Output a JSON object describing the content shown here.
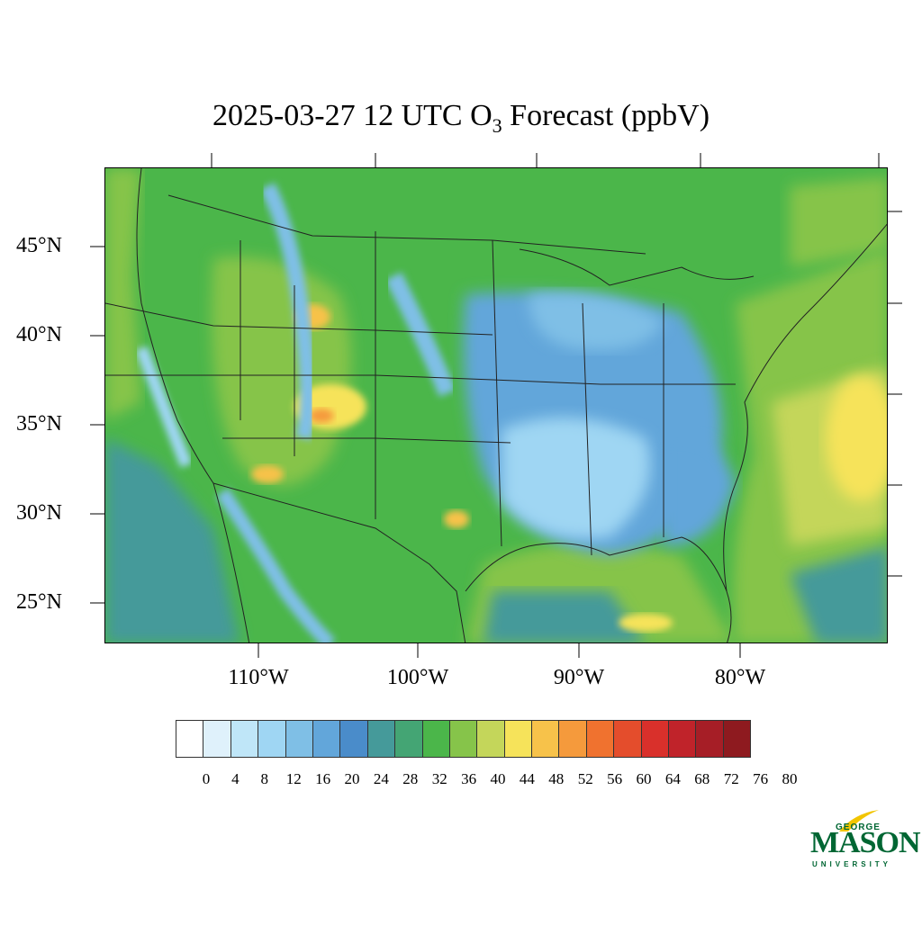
{
  "title": {
    "prefix": "2025-03-27 12 UTC O",
    "subscript": "3",
    "suffix": " Forecast (ppbV)"
  },
  "lat_labels": [
    "45°N",
    "40°N",
    "35°N",
    "30°N",
    "25°N"
  ],
  "lon_labels": [
    "110°W",
    "100°W",
    "90°W",
    "80°W"
  ],
  "colorbar": {
    "labels": [
      "0",
      "4",
      "8",
      "12",
      "16",
      "20",
      "24",
      "28",
      "32",
      "36",
      "40",
      "44",
      "48",
      "52",
      "56",
      "60",
      "64",
      "68",
      "72",
      "76",
      "80"
    ],
    "colors": [
      "#ffffff",
      "#dff1fb",
      "#bfe6f8",
      "#9fd6f3",
      "#7fbfe6",
      "#62a6da",
      "#4a8cca",
      "#459a9a",
      "#44a574",
      "#4bb64a",
      "#86c44a",
      "#c4d65a",
      "#f6e35a",
      "#f7c24a",
      "#f59a3c",
      "#f0722f",
      "#e44d2c",
      "#d9302b",
      "#c0232a",
      "#a61e26",
      "#8e1a1f"
    ]
  },
  "logo": {
    "top": "GEORGE",
    "main": "MASON",
    "bottom": "UNIVERSITY"
  }
}
